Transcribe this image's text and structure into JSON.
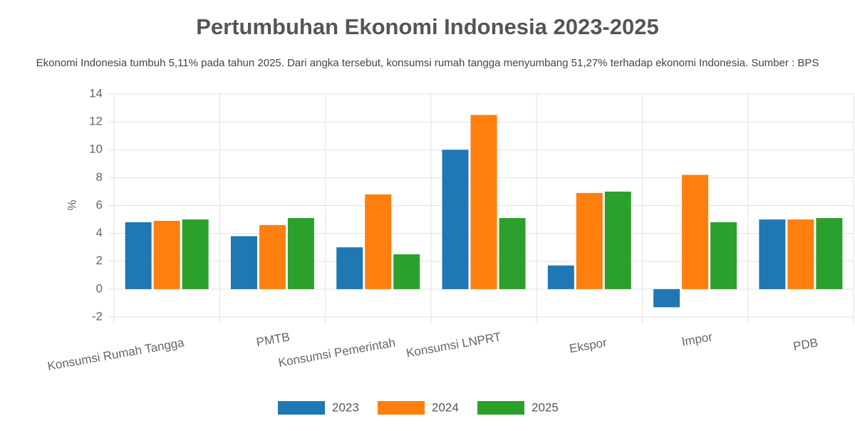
{
  "chart_data": {
    "type": "bar",
    "title": "Pertumbuhan Ekonomi Indonesia 2023-2025",
    "subtitle": "Ekonomi Indonesia tumbuh 5,11% pada tahun 2025. Dari angka tersebut, konsumsi rumah tangga menyumbang 51,27% terhadap ekonomi Indonesia. Sumber : BPS",
    "y_label": "%",
    "categories": [
      "Konsumsi Rumah Tangga",
      "PMTB",
      "Konsumsi Pemerintah",
      "Konsumsi LNPRT",
      "Ekspor",
      "Impor",
      "PDB"
    ],
    "series": [
      {
        "name": "2023",
        "color": "#1f77b4",
        "values": [
          4.8,
          3.8,
          3.0,
          10.0,
          1.7,
          -1.3,
          5.0
        ]
      },
      {
        "name": "2024",
        "color": "#ff7f0e",
        "values": [
          4.9,
          4.6,
          6.8,
          12.5,
          6.9,
          8.2,
          5.0
        ]
      },
      {
        "name": "2025",
        "color": "#2ca02c",
        "values": [
          5.0,
          5.1,
          2.5,
          5.1,
          7.0,
          4.8,
          5.1
        ]
      }
    ],
    "ylim": [
      -2,
      14
    ],
    "yticks": [
      -2,
      0,
      2,
      4,
      6,
      8,
      10,
      12,
      14
    ],
    "grid": true
  }
}
